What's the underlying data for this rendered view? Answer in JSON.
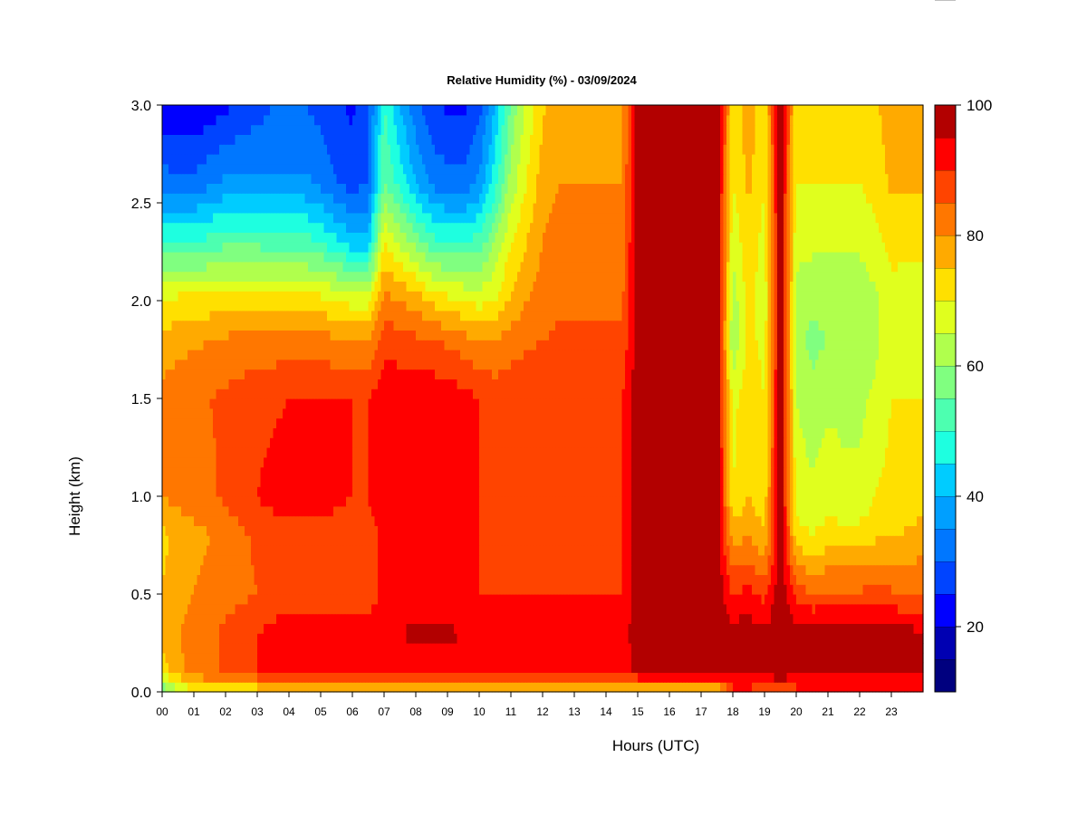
{
  "chart_data": {
    "type": "heatmap",
    "title": "Relative Humidity (%) - 03/09/2024",
    "xlabel": "Hours (UTC)",
    "ylabel": "Height (km)",
    "x_ticks": [
      "00",
      "01",
      "02",
      "03",
      "04",
      "05",
      "06",
      "07",
      "08",
      "09",
      "10",
      "11",
      "12",
      "13",
      "14",
      "15",
      "16",
      "17",
      "18",
      "19",
      "20",
      "21",
      "22",
      "23"
    ],
    "y_ticks": [
      "0.0",
      "0.5",
      "1.0",
      "1.5",
      "2.0",
      "2.5",
      "3.0"
    ],
    "xlim": [
      0,
      24
    ],
    "ylim": [
      0,
      3
    ],
    "colorbar": {
      "label_ticks": [
        "20",
        "40",
        "60",
        "80",
        "100"
      ],
      "range": [
        10,
        100
      ],
      "levels": [
        10,
        15,
        20,
        25,
        30,
        35,
        40,
        45,
        50,
        55,
        60,
        65,
        70,
        75,
        80,
        85,
        90,
        95,
        100
      ],
      "colors": [
        "#00007f",
        "#0000b2",
        "#0000ff",
        "#0044ff",
        "#0077ff",
        "#009fff",
        "#00ccff",
        "#1effe0",
        "#4dffb0",
        "#80ff80",
        "#b0ff4d",
        "#e0ff1e",
        "#ffe000",
        "#ffaa00",
        "#ff7700",
        "#ff4400",
        "#ff0000",
        "#b20000",
        "#7f0000"
      ]
    },
    "x": [
      0,
      0.5,
      1,
      1.5,
      2,
      2.5,
      3,
      3.5,
      4,
      4.5,
      5,
      5.5,
      6,
      6.5,
      7,
      7.5,
      8,
      8.5,
      9,
      9.5,
      10,
      10.5,
      11,
      11.5,
      12,
      12.5,
      13,
      13.5,
      14,
      14.5,
      15,
      15.5,
      16,
      16.5,
      17,
      17.5,
      18,
      18.5,
      19,
      19.5,
      20,
      20.5,
      21,
      21.5,
      22,
      22.5,
      23,
      23.5,
      24
    ],
    "heights": [
      0,
      0.1,
      0.3,
      0.5,
      0.8,
      1.0,
      1.5,
      1.8,
      2.0,
      2.3,
      2.6,
      3.0
    ],
    "z": [
      [
        55,
        62,
        70,
        70,
        70,
        70,
        70,
        70,
        70,
        70,
        70,
        70,
        70,
        70,
        70,
        70,
        70,
        70,
        72,
        72,
        72,
        72,
        72,
        72,
        72,
        72,
        72,
        72,
        72,
        72,
        72,
        72,
        72,
        72,
        72,
        72,
        88,
        88,
        85,
        85,
        88,
        88,
        88,
        88,
        88,
        88,
        88,
        88,
        88
      ],
      [
        72,
        78,
        82,
        84,
        86,
        88,
        90,
        91,
        92,
        92,
        92,
        92,
        92,
        92,
        92,
        92,
        92,
        92,
        92,
        92,
        92,
        92,
        92,
        92,
        92,
        92,
        92,
        92,
        92,
        92,
        96,
        98,
        98,
        98,
        98,
        98,
        96,
        97,
        97,
        99,
        96,
        97,
        97,
        97,
        97,
        97,
        97,
        97,
        96
      ],
      [
        78,
        80,
        82,
        84,
        86,
        88,
        90,
        92,
        94,
        95,
        94,
        93,
        92,
        92,
        94,
        95,
        96,
        96,
        96,
        95,
        94,
        93,
        94,
        94,
        94,
        94,
        93,
        93,
        93,
        93,
        98,
        99,
        99,
        99,
        99,
        99,
        97,
        98,
        96,
        99,
        97,
        98,
        98,
        98,
        98,
        98,
        98,
        97,
        96
      ],
      [
        75,
        78,
        80,
        82,
        83,
        84,
        85,
        86,
        86,
        86,
        87,
        87,
        87,
        87,
        92,
        92,
        92,
        92,
        92,
        91,
        90,
        90,
        90,
        90,
        90,
        90,
        90,
        90,
        90,
        90,
        98,
        99,
        99,
        99,
        99,
        99,
        90,
        92,
        88,
        99,
        88,
        85,
        86,
        86,
        86,
        87,
        86,
        84,
        84
      ],
      [
        74,
        76,
        78,
        80,
        82,
        84,
        86,
        87,
        88,
        88,
        88,
        88,
        87,
        87,
        92,
        93,
        93,
        93,
        92,
        91,
        90,
        90,
        90,
        90,
        90,
        90,
        90,
        90,
        90,
        90,
        98,
        99,
        99,
        99,
        99,
        99,
        78,
        80,
        75,
        99,
        72,
        70,
        72,
        72,
        72,
        74,
        74,
        76,
        78
      ],
      [
        80,
        82,
        83,
        84,
        86,
        88,
        90,
        92,
        93,
        93,
        92,
        91,
        90,
        90,
        94,
        93,
        93,
        93,
        93,
        92,
        90,
        89,
        90,
        90,
        90,
        90,
        90,
        90,
        90,
        90,
        98,
        99,
        99,
        99,
        99,
        99,
        70,
        75,
        72,
        99,
        68,
        66,
        68,
        66,
        66,
        70,
        72,
        70,
        72
      ],
      [
        82,
        84,
        85,
        85,
        86,
        87,
        88,
        89,
        90,
        90,
        90,
        90,
        90,
        90,
        94,
        94,
        94,
        94,
        93,
        92,
        90,
        88,
        89,
        90,
        90,
        90,
        90,
        90,
        90,
        90,
        98,
        99,
        99,
        99,
        99,
        99,
        68,
        74,
        70,
        99,
        65,
        62,
        64,
        64,
        64,
        66,
        70,
        70,
        70
      ],
      [
        76,
        78,
        79,
        80,
        81,
        82,
        82,
        82,
        82,
        82,
        82,
        81,
        80,
        80,
        88,
        87,
        86,
        85,
        84,
        82,
        80,
        80,
        82,
        84,
        85,
        86,
        86,
        86,
        86,
        86,
        98,
        99,
        99,
        99,
        99,
        99,
        60,
        72,
        68,
        99,
        62,
        58,
        60,
        60,
        60,
        64,
        68,
        66,
        66
      ],
      [
        70,
        72,
        72,
        72,
        72,
        72,
        72,
        72,
        72,
        72,
        72,
        70,
        68,
        68,
        82,
        80,
        78,
        74,
        72,
        70,
        68,
        70,
        76,
        80,
        82,
        84,
        84,
        84,
        84,
        84,
        98,
        99,
        99,
        99,
        99,
        99,
        62,
        72,
        66,
        99,
        64,
        62,
        62,
        62,
        62,
        64,
        68,
        66,
        66
      ],
      [
        50,
        50,
        50,
        52,
        54,
        54,
        54,
        52,
        52,
        52,
        50,
        46,
        42,
        42,
        70,
        64,
        58,
        52,
        50,
        50,
        52,
        60,
        70,
        75,
        80,
        82,
        82,
        82,
        82,
        82,
        98,
        99,
        99,
        99,
        99,
        99,
        66,
        74,
        68,
        99,
        66,
        66,
        66,
        66,
        66,
        68,
        72,
        72,
        72
      ],
      [
        32,
        32,
        32,
        34,
        36,
        36,
        36,
        36,
        36,
        36,
        34,
        30,
        28,
        30,
        56,
        48,
        40,
        34,
        32,
        32,
        36,
        48,
        62,
        70,
        78,
        80,
        80,
        80,
        80,
        80,
        98,
        99,
        99,
        99,
        99,
        99,
        70,
        76,
        70,
        99,
        70,
        70,
        70,
        70,
        70,
        72,
        76,
        76,
        76
      ],
      [
        22,
        20,
        20,
        22,
        24,
        26,
        28,
        30,
        30,
        30,
        28,
        26,
        24,
        28,
        50,
        40,
        32,
        26,
        24,
        24,
        28,
        40,
        56,
        66,
        74,
        78,
        78,
        78,
        78,
        78,
        98,
        99,
        99,
        99,
        99,
        99,
        72,
        78,
        72,
        99,
        72,
        72,
        72,
        72,
        72,
        74,
        78,
        78,
        78
      ]
    ]
  }
}
